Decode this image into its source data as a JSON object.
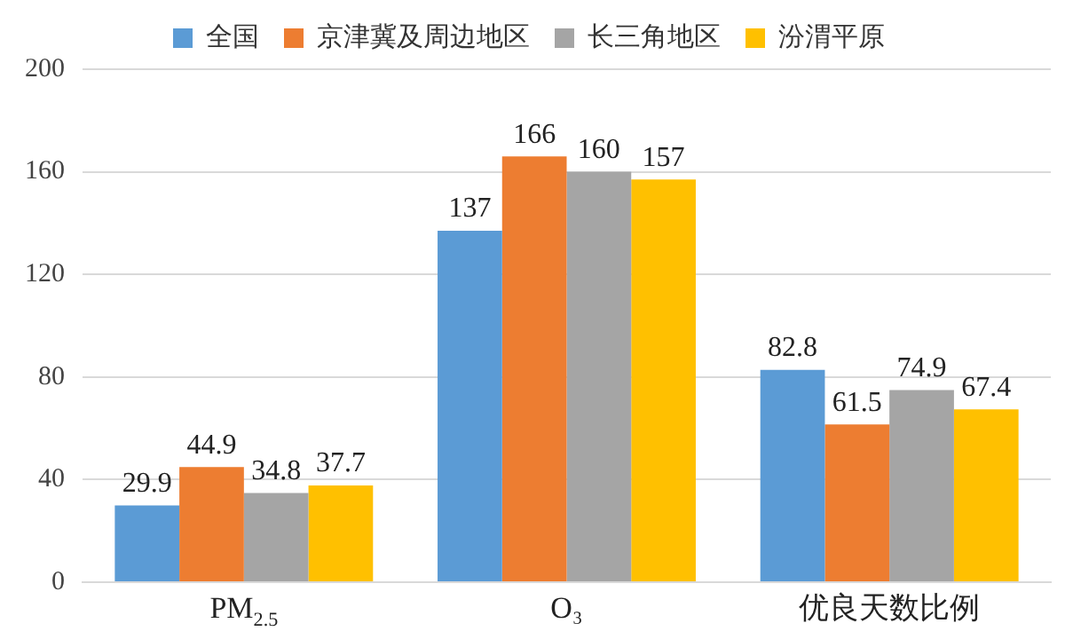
{
  "chart_data": {
    "type": "bar",
    "categories": [
      "PM$_{2.5}$",
      "O₃",
      "优良天数比例"
    ],
    "series": [
      {
        "name": "全国",
        "color": "#5b9bd5",
        "values": [
          29.9,
          137,
          82.8
        ]
      },
      {
        "name": "京津冀及周边地区",
        "color": "#ed7d31",
        "values": [
          44.9,
          166,
          61.5
        ]
      },
      {
        "name": "长三角地区",
        "color": "#a5a5a5",
        "values": [
          34.8,
          160,
          74.9
        ]
      },
      {
        "name": "汾渭平原",
        "color": "#ffc000",
        "values": [
          37.7,
          157,
          67.4
        ]
      }
    ],
    "ylim": [
      0,
      200
    ],
    "yticks": [
      0,
      40,
      80,
      120,
      160,
      200
    ],
    "grid": "y",
    "legend": "top",
    "data_labels": true
  }
}
